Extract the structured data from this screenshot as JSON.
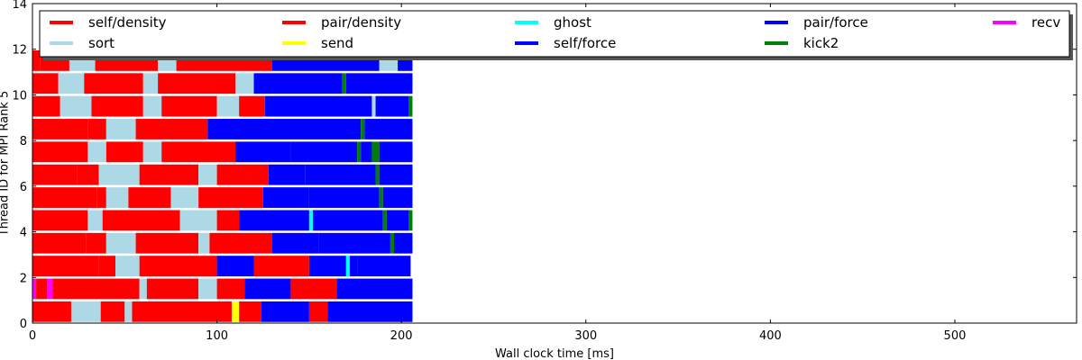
{
  "chart_data": {
    "type": "task-timeline",
    "xlabel": "Wall clock time [ms]",
    "ylabel": "Thread ID for MPI Rank 5",
    "xlim": [
      0,
      566
    ],
    "ylim": [
      0,
      14
    ],
    "xticks": [
      0,
      100,
      200,
      300,
      400,
      500
    ],
    "yticks": [
      0,
      2,
      4,
      6,
      8,
      10,
      12,
      14
    ],
    "grid": false,
    "legend_position": "top, 5 columns",
    "legend": [
      {
        "label": "self/density",
        "color": "#ff0000"
      },
      {
        "label": "sort",
        "color": "#add8e6"
      },
      {
        "label": "pair/density",
        "color": "#ff0000"
      },
      {
        "label": "send",
        "color": "#ffff00"
      },
      {
        "label": "ghost",
        "color": "#00ffff"
      },
      {
        "label": "self/force",
        "color": "#0000ff"
      },
      {
        "label": "pair/force",
        "color": "#0000ff"
      },
      {
        "label": "kick2",
        "color": "#008000"
      },
      {
        "label": "recv",
        "color": "#ff00ff"
      }
    ],
    "threads": [
      {
        "thread": 0,
        "y": 0.5,
        "segments": [
          [
            0,
            21,
            "self/density"
          ],
          [
            21,
            37,
            "sort"
          ],
          [
            37,
            50,
            "pair/density"
          ],
          [
            50,
            54,
            "sort"
          ],
          [
            54,
            108,
            "pair/density"
          ],
          [
            108,
            112,
            "send"
          ],
          [
            112,
            124,
            "pair/density"
          ],
          [
            124,
            150,
            "pair/force"
          ],
          [
            150,
            160,
            "pair/density"
          ],
          [
            160,
            206,
            "pair/force"
          ]
        ]
      },
      {
        "thread": 1,
        "y": 1.5,
        "segments": [
          [
            0,
            2,
            "recv"
          ],
          [
            2,
            8,
            "self/density"
          ],
          [
            8,
            11,
            "recv"
          ],
          [
            11,
            58,
            "pair/density"
          ],
          [
            58,
            62,
            "sort"
          ],
          [
            62,
            90,
            "pair/density"
          ],
          [
            90,
            100,
            "sort"
          ],
          [
            100,
            115,
            "pair/density"
          ],
          [
            115,
            140,
            "pair/force"
          ],
          [
            140,
            165,
            "pair/density"
          ],
          [
            165,
            206,
            "pair/force"
          ]
        ]
      },
      {
        "thread": 2,
        "y": 2.5,
        "segments": [
          [
            0,
            36,
            "self/density"
          ],
          [
            36,
            45,
            "pair/density"
          ],
          [
            45,
            58,
            "sort"
          ],
          [
            58,
            100,
            "pair/density"
          ],
          [
            100,
            120,
            "pair/force"
          ],
          [
            120,
            150,
            "pair/density"
          ],
          [
            150,
            170,
            "pair/force"
          ],
          [
            170,
            172,
            "ghost"
          ],
          [
            172,
            176,
            "pair/force"
          ],
          [
            176,
            205,
            "pair/force"
          ]
        ]
      },
      {
        "thread": 3,
        "y": 3.5,
        "segments": [
          [
            0,
            29,
            "self/density"
          ],
          [
            29,
            40,
            "pair/density"
          ],
          [
            40,
            56,
            "sort"
          ],
          [
            56,
            90,
            "pair/density"
          ],
          [
            90,
            96,
            "sort"
          ],
          [
            96,
            130,
            "pair/density"
          ],
          [
            130,
            155,
            "pair/force"
          ],
          [
            155,
            194,
            "pair/force"
          ],
          [
            194,
            196,
            "kick2"
          ],
          [
            196,
            206,
            "pair/force"
          ]
        ]
      },
      {
        "thread": 4,
        "y": 4.5,
        "segments": [
          [
            0,
            30,
            "self/density"
          ],
          [
            30,
            38,
            "sort"
          ],
          [
            38,
            80,
            "pair/density"
          ],
          [
            80,
            100,
            "sort"
          ],
          [
            100,
            112,
            "pair/density"
          ],
          [
            112,
            150,
            "pair/force"
          ],
          [
            150,
            152,
            "ghost"
          ],
          [
            152,
            190,
            "pair/force"
          ],
          [
            190,
            192,
            "kick2"
          ],
          [
            192,
            204,
            "pair/force"
          ],
          [
            204,
            206,
            "kick2"
          ]
        ]
      },
      {
        "thread": 5,
        "y": 5.5,
        "segments": [
          [
            0,
            35,
            "self/density"
          ],
          [
            35,
            40,
            "pair/density"
          ],
          [
            40,
            52,
            "sort"
          ],
          [
            52,
            75,
            "pair/density"
          ],
          [
            75,
            90,
            "sort"
          ],
          [
            90,
            125,
            "pair/density"
          ],
          [
            125,
            150,
            "pair/force"
          ],
          [
            150,
            188,
            "pair/force"
          ],
          [
            188,
            190,
            "kick2"
          ],
          [
            190,
            206,
            "pair/force"
          ]
        ]
      },
      {
        "thread": 6,
        "y": 6.5,
        "segments": [
          [
            0,
            24,
            "self/density"
          ],
          [
            24,
            36,
            "pair/density"
          ],
          [
            36,
            58,
            "sort"
          ],
          [
            58,
            90,
            "pair/density"
          ],
          [
            90,
            100,
            "sort"
          ],
          [
            100,
            128,
            "pair/density"
          ],
          [
            128,
            148,
            "pair/force"
          ],
          [
            148,
            186,
            "pair/force"
          ],
          [
            186,
            188,
            "kick2"
          ],
          [
            188,
            206,
            "pair/force"
          ]
        ]
      },
      {
        "thread": 7,
        "y": 7.5,
        "segments": [
          [
            0,
            30,
            "self/density"
          ],
          [
            30,
            40,
            "sort"
          ],
          [
            40,
            60,
            "pair/density"
          ],
          [
            60,
            70,
            "sort"
          ],
          [
            70,
            110,
            "pair/density"
          ],
          [
            110,
            140,
            "pair/force"
          ],
          [
            140,
            176,
            "pair/force"
          ],
          [
            176,
            178,
            "kick2"
          ],
          [
            178,
            184,
            "pair/force"
          ],
          [
            184,
            188,
            "kick2"
          ],
          [
            188,
            206,
            "pair/force"
          ]
        ]
      },
      {
        "thread": 8,
        "y": 8.5,
        "segments": [
          [
            0,
            30,
            "self/density"
          ],
          [
            30,
            40,
            "pair/density"
          ],
          [
            40,
            56,
            "sort"
          ],
          [
            56,
            95,
            "pair/density"
          ],
          [
            95,
            120,
            "pair/force"
          ],
          [
            120,
            178,
            "pair/force"
          ],
          [
            178,
            180,
            "kick2"
          ],
          [
            180,
            206,
            "pair/force"
          ]
        ]
      },
      {
        "thread": 9,
        "y": 9.5,
        "segments": [
          [
            0,
            15,
            "self/density"
          ],
          [
            15,
            32,
            "sort"
          ],
          [
            32,
            60,
            "pair/density"
          ],
          [
            60,
            70,
            "sort"
          ],
          [
            70,
            100,
            "pair/density"
          ],
          [
            100,
            112,
            "sort"
          ],
          [
            112,
            126,
            "pair/density"
          ],
          [
            126,
            184,
            "pair/force"
          ],
          [
            184,
            186,
            "sort"
          ],
          [
            186,
            204,
            "pair/force"
          ],
          [
            204,
            206,
            "kick2"
          ]
        ]
      },
      {
        "thread": 10,
        "y": 10.5,
        "segments": [
          [
            0,
            14,
            "self/density"
          ],
          [
            14,
            28,
            "sort"
          ],
          [
            28,
            60,
            "pair/density"
          ],
          [
            60,
            68,
            "sort"
          ],
          [
            68,
            110,
            "pair/density"
          ],
          [
            110,
            120,
            "sort"
          ],
          [
            120,
            168,
            "pair/force"
          ],
          [
            168,
            170,
            "kick2"
          ],
          [
            170,
            206,
            "pair/force"
          ]
        ]
      },
      {
        "thread": 11,
        "y": 11.5,
        "segments": [
          [
            0,
            4,
            "self/density"
          ],
          [
            4,
            20,
            "pair/density"
          ],
          [
            20,
            34,
            "sort"
          ],
          [
            34,
            68,
            "pair/density"
          ],
          [
            68,
            78,
            "sort"
          ],
          [
            78,
            130,
            "pair/density"
          ],
          [
            130,
            188,
            "pair/force"
          ],
          [
            188,
            198,
            "sort"
          ],
          [
            198,
            206,
            "pair/force"
          ]
        ]
      }
    ]
  }
}
